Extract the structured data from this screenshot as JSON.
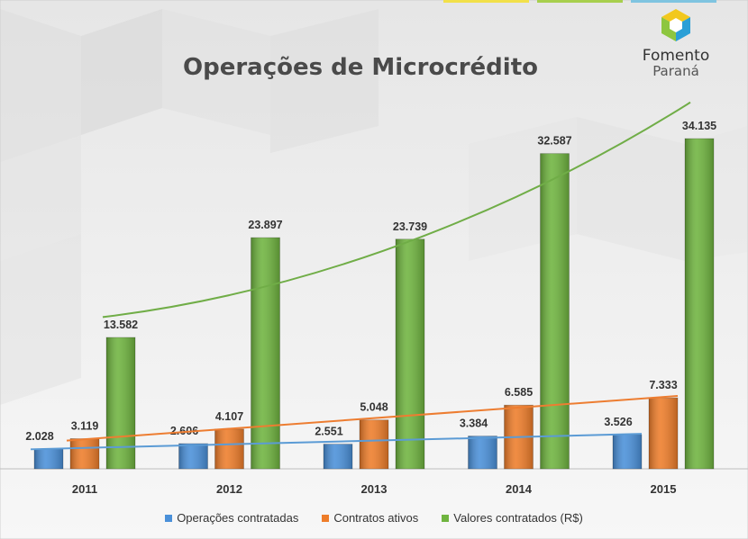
{
  "title": "Operações de Microcrédito",
  "logo": {
    "line1": "Fomento",
    "line2": "Paraná"
  },
  "colors": {
    "top_bar_1": "#f2e04a",
    "top_bar_2": "#a7cf4d",
    "top_bar_3": "#7fc4e0",
    "logo_yellow": "#f2c81e",
    "logo_green": "#8dc63f",
    "logo_blue": "#2a9fd6"
  },
  "chart_data": {
    "type": "bar",
    "title": "Operações de Microcrédito",
    "categories": [
      "2011",
      "2012",
      "2013",
      "2014",
      "2015"
    ],
    "series": [
      {
        "name": "Operações contratadas",
        "color": "#4a90d9",
        "values": [
          2028,
          2606,
          2551,
          3384,
          3526
        ],
        "labels": [
          "2.028",
          "2.606",
          "2.551",
          "3.384",
          "3.526"
        ]
      },
      {
        "name": "Contratos ativos",
        "color": "#ee7d2a",
        "values": [
          3119,
          4107,
          5048,
          6585,
          7333
        ],
        "labels": [
          "3.119",
          "4.107",
          "5.048",
          "6.585",
          "7.333"
        ]
      },
      {
        "name": "Valores contratados (R$)",
        "color": "#6fb43f",
        "values": [
          13582,
          23897,
          23739,
          32587,
          34135
        ],
        "labels": [
          "13.582",
          "23.897",
          "23.739",
          "32.587",
          "34.135"
        ]
      }
    ],
    "trendlines": true,
    "grid": false,
    "legend_position": "bottom"
  }
}
